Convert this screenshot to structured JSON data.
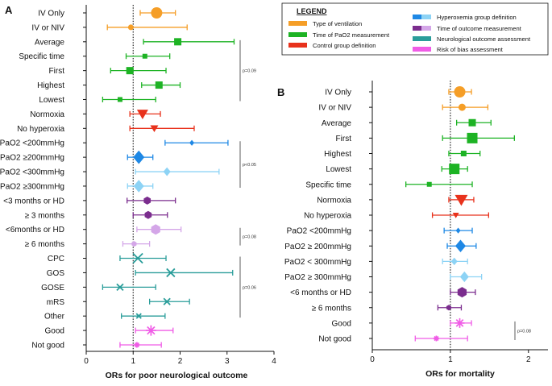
{
  "colors": {
    "ventilation": "#F59E27",
    "pao2_time": "#1DB324",
    "control": "#E8321C",
    "hyperoxemia_dark": "#1E88E5",
    "hyperoxemia_light": "#8DD3F5",
    "outcome_dark": "#7B2D8E",
    "outcome_light": "#D4A6E8",
    "neuro": "#2A9D9A",
    "bias": "#F05CE6"
  },
  "legend": {
    "title": "LEGEND",
    "items": [
      {
        "label": "Type of ventilation",
        "color": "#F59E27"
      },
      {
        "label": "Time of PaO2 measurement",
        "color": "#1DB324"
      },
      {
        "label": "Control group definition",
        "color": "#E8321C"
      },
      {
        "label": "Hyperoxemia group definition",
        "colors": [
          "#1E88E5",
          "#8DD3F5"
        ]
      },
      {
        "label": "Time of outcome measurement",
        "colors": [
          "#7B2D8E",
          "#D4A6E8"
        ]
      },
      {
        "label": "Neurological outcome assessment",
        "color": "#2A9D9A"
      },
      {
        "label": "Risk of bias assessment",
        "color": "#F05CE6"
      }
    ]
  },
  "chart_data": [
    {
      "type": "forest",
      "panel_label": "A",
      "xlabel": "ORs for poor neurological outcome",
      "xlim": [
        0,
        4
      ],
      "xticks": [
        0,
        1,
        2,
        3,
        4
      ],
      "reference_line": 1,
      "rows": [
        {
          "label": "IV Only",
          "or": 1.5,
          "lo": 1.15,
          "hi": 1.9,
          "color": "#F59E27",
          "marker": "circle",
          "size": 7
        },
        {
          "label": "IV or NIV",
          "or": 0.95,
          "lo": 0.45,
          "hi": 2.15,
          "color": "#F59E27",
          "marker": "circle",
          "size": 3.5
        },
        {
          "label": "Average",
          "or": 1.95,
          "lo": 1.22,
          "hi": 3.15,
          "color": "#1DB324",
          "marker": "square",
          "size": 4.5
        },
        {
          "label": "Specific time",
          "or": 1.25,
          "lo": 0.85,
          "hi": 1.78,
          "color": "#1DB324",
          "marker": "square",
          "size": 3
        },
        {
          "label": "First",
          "or": 0.93,
          "lo": 0.52,
          "hi": 1.7,
          "color": "#1DB324",
          "marker": "square",
          "size": 4.5
        },
        {
          "label": "Highest",
          "or": 1.55,
          "lo": 1.18,
          "hi": 2.0,
          "color": "#1DB324",
          "marker": "square",
          "size": 4.5
        },
        {
          "label": "Lowest",
          "or": 0.72,
          "lo": 0.35,
          "hi": 1.48,
          "color": "#1DB324",
          "marker": "square",
          "size": 3
        },
        {
          "label": "Normoxia",
          "or": 1.2,
          "lo": 0.93,
          "hi": 1.58,
          "color": "#E8321C",
          "marker": "triangle",
          "size": 7
        },
        {
          "label": "No hyperoxia",
          "or": 1.45,
          "lo": 0.93,
          "hi": 2.3,
          "color": "#E8321C",
          "marker": "triangle",
          "size": 5
        },
        {
          "label": "PaO2 <200mmHg",
          "or": 2.25,
          "lo": 1.68,
          "hi": 3.02,
          "color": "#1E88E5",
          "marker": "diamond",
          "size": 3
        },
        {
          "label": "PaO2 ≥200mmHg",
          "or": 1.12,
          "lo": 0.88,
          "hi": 1.42,
          "color": "#1E88E5",
          "marker": "diamond",
          "size": 7
        },
        {
          "label": "PaO2 <300mmHg",
          "or": 1.72,
          "lo": 1.05,
          "hi": 2.83,
          "color": "#8DD3F5",
          "marker": "diamond",
          "size": 4.5
        },
        {
          "label": "PaO2 ≥300mmHg",
          "or": 1.12,
          "lo": 0.88,
          "hi": 1.42,
          "color": "#8DD3F5",
          "marker": "diamond",
          "size": 6.5
        },
        {
          "label": "<3 months or HD",
          "or": 1.3,
          "lo": 0.87,
          "hi": 1.9,
          "color": "#7B2D8E",
          "marker": "hexagon",
          "size": 5
        },
        {
          "label": "≥ 3 months",
          "or": 1.32,
          "lo": 1.0,
          "hi": 1.73,
          "color": "#7B2D8E",
          "marker": "hexagon",
          "size": 5
        },
        {
          "label": "<6months or HD",
          "or": 1.48,
          "lo": 1.08,
          "hi": 2.02,
          "color": "#D4A6E8",
          "marker": "hexagon",
          "size": 6.5
        },
        {
          "label": "≥ 6 months",
          "or": 1.02,
          "lo": 0.78,
          "hi": 1.35,
          "color": "#D4A6E8",
          "marker": "hexagon",
          "size": 3.5
        },
        {
          "label": "CPC",
          "or": 1.1,
          "lo": 0.72,
          "hi": 1.7,
          "color": "#2A9D9A",
          "marker": "x",
          "size": 6
        },
        {
          "label": "GOS",
          "or": 1.8,
          "lo": 1.05,
          "hi": 3.12,
          "color": "#2A9D9A",
          "marker": "x",
          "size": 5
        },
        {
          "label": "GOSE",
          "or": 0.72,
          "lo": 0.35,
          "hi": 1.48,
          "color": "#2A9D9A",
          "marker": "x",
          "size": 4
        },
        {
          "label": "mRS",
          "or": 1.72,
          "lo": 1.35,
          "hi": 2.2,
          "color": "#2A9D9A",
          "marker": "x",
          "size": 4
        },
        {
          "label": "Other",
          "or": 1.12,
          "lo": 0.75,
          "hi": 1.68,
          "color": "#2A9D9A",
          "marker": "x",
          "size": 3
        },
        {
          "label": "Good",
          "or": 1.38,
          "lo": 1.05,
          "hi": 1.85,
          "color": "#F05CE6",
          "marker": "star",
          "size": 6.5
        },
        {
          "label": "Not good",
          "or": 1.08,
          "lo": 0.72,
          "hi": 1.6,
          "color": "#F05CE6",
          "marker": "star",
          "size": 3.5
        }
      ],
      "p_values": [
        {
          "text": "p=0.09",
          "from_row": 2,
          "to_row": 6
        },
        {
          "text": "p<0.05",
          "from_row": 9,
          "to_row": 12
        },
        {
          "text": "p=0.08",
          "from_row": 15,
          "to_row": 16
        },
        {
          "text": "p=0.06",
          "from_row": 17,
          "to_row": 21
        }
      ]
    },
    {
      "type": "forest",
      "panel_label": "B",
      "xlabel": "ORs for mortality",
      "xlim": [
        0,
        2.25
      ],
      "xticks": [
        0,
        1,
        2
      ],
      "reference_line": 1,
      "rows": [
        {
          "label": "IV Only",
          "or": 1.12,
          "lo": 0.98,
          "hi": 1.27,
          "color": "#F59E27",
          "marker": "circle",
          "size": 7
        },
        {
          "label": "IV or NIV",
          "or": 1.15,
          "lo": 0.9,
          "hi": 1.48,
          "color": "#F59E27",
          "marker": "circle",
          "size": 4.5
        },
        {
          "label": "Average",
          "or": 1.28,
          "lo": 1.08,
          "hi": 1.52,
          "color": "#1DB324",
          "marker": "square",
          "size": 4.5
        },
        {
          "label": "First",
          "or": 1.28,
          "lo": 0.9,
          "hi": 1.82,
          "color": "#1DB324",
          "marker": "square",
          "size": 6.5
        },
        {
          "label": "Highest",
          "or": 1.17,
          "lo": 0.98,
          "hi": 1.38,
          "color": "#1DB324",
          "marker": "square",
          "size": 3.5
        },
        {
          "label": "Lowest",
          "or": 1.05,
          "lo": 0.89,
          "hi": 1.22,
          "color": "#1DB324",
          "marker": "square",
          "size": 6.5
        },
        {
          "label": "Specific time",
          "or": 0.73,
          "lo": 0.43,
          "hi": 1.28,
          "color": "#1DB324",
          "marker": "square",
          "size": 3
        },
        {
          "label": "Normoxia",
          "or": 1.14,
          "lo": 0.98,
          "hi": 1.3,
          "color": "#E8321C",
          "marker": "triangle",
          "size": 8
        },
        {
          "label": "No hyperoxia",
          "or": 1.07,
          "lo": 0.77,
          "hi": 1.49,
          "color": "#E8321C",
          "marker": "triangle",
          "size": 4
        },
        {
          "label": "PaO2 <200mmHg",
          "or": 1.1,
          "lo": 0.92,
          "hi": 1.28,
          "color": "#1E88E5",
          "marker": "diamond",
          "size": 3
        },
        {
          "label": "PaO2 ≥ 200mmHg",
          "or": 1.13,
          "lo": 0.96,
          "hi": 1.33,
          "color": "#1E88E5",
          "marker": "diamond",
          "size": 6.5
        },
        {
          "label": "PaO2 < 300mmHg",
          "or": 1.05,
          "lo": 0.9,
          "hi": 1.22,
          "color": "#8DD3F5",
          "marker": "diamond",
          "size": 4
        },
        {
          "label": "PaO2 ≥ 300mmHg",
          "or": 1.18,
          "lo": 1.0,
          "hi": 1.4,
          "color": "#8DD3F5",
          "marker": "diamond",
          "size": 5.5
        },
        {
          "label": "<6 months or HD",
          "or": 1.15,
          "lo": 1.0,
          "hi": 1.32,
          "color": "#7B2D8E",
          "marker": "hexagon",
          "size": 6.5
        },
        {
          "label": "≥ 6 months",
          "or": 0.98,
          "lo": 0.84,
          "hi": 1.14,
          "color": "#7B2D8E",
          "marker": "hexagon",
          "size": 3.5
        },
        {
          "label": "Good",
          "or": 1.12,
          "lo": 1.0,
          "hi": 1.27,
          "color": "#F05CE6",
          "marker": "star",
          "size": 6
        },
        {
          "label": "Not good",
          "or": 0.82,
          "lo": 0.55,
          "hi": 1.22,
          "color": "#F05CE6",
          "marker": "star",
          "size": 3.5
        }
      ],
      "p_values": [
        {
          "text": "p=0.08",
          "from_row": 15,
          "to_row": 16
        }
      ]
    }
  ]
}
